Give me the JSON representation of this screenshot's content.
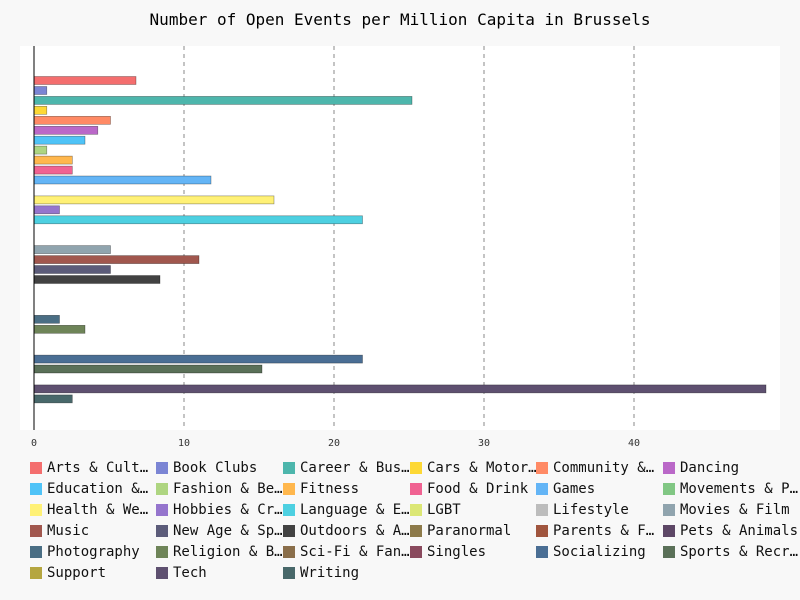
{
  "chart_data": {
    "type": "bar",
    "orientation": "horizontal",
    "title": "Number of Open Events per Million Capita in Brussels",
    "xlabel": "",
    "ylabel": "",
    "xlim": [
      0,
      48.8
    ],
    "x_ticks": [
      0,
      10,
      20,
      30,
      40
    ],
    "grid": "vertical dashed",
    "legend_position": "bottom",
    "series": [
      {
        "name": "Arts & Culture",
        "value": 6.8,
        "color": "#f46e6e"
      },
      {
        "name": "Book Clubs",
        "value": 0.85,
        "color": "#7b85d4"
      },
      {
        "name": "Career & Business",
        "value": 25.2,
        "color": "#4db6ac"
      },
      {
        "name": "Cars & Motorcycles",
        "value": 0.85,
        "color": "#fdd835"
      },
      {
        "name": "Community & Environment",
        "value": 5.1,
        "color": "#ff8a65"
      },
      {
        "name": "Dancing",
        "value": 4.25,
        "color": "#ba68c8"
      },
      {
        "name": "Education & Learning",
        "value": 3.4,
        "color": "#4fc3f7"
      },
      {
        "name": "Fashion & Beauty",
        "value": 0.85,
        "color": "#aed581"
      },
      {
        "name": "Fitness",
        "value": 2.55,
        "color": "#ffb74d"
      },
      {
        "name": "Food & Drink",
        "value": 2.55,
        "color": "#f06292"
      },
      {
        "name": "Games",
        "value": 11.8,
        "color": "#64b5f6"
      },
      {
        "name": "Movements & Politics",
        "value": 0,
        "color": "#81c784"
      },
      {
        "name": "Health & Wellbeing",
        "value": 16.0,
        "color": "#fff176"
      },
      {
        "name": "Hobbies & Crafts",
        "value": 1.7,
        "color": "#9575cd"
      },
      {
        "name": "Language & Ethnic Identity",
        "value": 21.9,
        "color": "#4dd0e1"
      },
      {
        "name": "LGBT",
        "value": 0,
        "color": "#dce775"
      },
      {
        "name": "Lifestyle",
        "value": 0,
        "color": "#bdbdbd"
      },
      {
        "name": "Movies & Film",
        "value": 5.1,
        "color": "#90a4ae"
      },
      {
        "name": "Music",
        "value": 11.0,
        "color": "#a1574e"
      },
      {
        "name": "New Age & Spirituality",
        "value": 5.1,
        "color": "#5c5c7a"
      },
      {
        "name": "Outdoors & Adventure",
        "value": 8.4,
        "color": "#424242"
      },
      {
        "name": "Paranormal",
        "value": 0,
        "color": "#8d7a4a"
      },
      {
        "name": "Parents & Family",
        "value": 0,
        "color": "#a0553e"
      },
      {
        "name": "Pets & Animals",
        "value": 0,
        "color": "#5d4766"
      },
      {
        "name": "Photography",
        "value": 1.7,
        "color": "#4a6e84"
      },
      {
        "name": "Religion & Beliefs",
        "value": 3.4,
        "color": "#6e8458"
      },
      {
        "name": "Sci-Fi & Fantasy",
        "value": 0,
        "color": "#8a6e4a"
      },
      {
        "name": "Singles",
        "value": 0,
        "color": "#8a4a5e"
      },
      {
        "name": "Socializing",
        "value": 21.9,
        "color": "#4a6e94"
      },
      {
        "name": "Sports & Recreation",
        "value": 15.2,
        "color": "#5a7058"
      },
      {
        "name": "Support",
        "value": 0,
        "color": "#b5a640"
      },
      {
        "name": "Tech",
        "value": 48.8,
        "color": "#5e5070"
      },
      {
        "name": "Writing",
        "value": 2.55,
        "color": "#48686a"
      }
    ]
  }
}
